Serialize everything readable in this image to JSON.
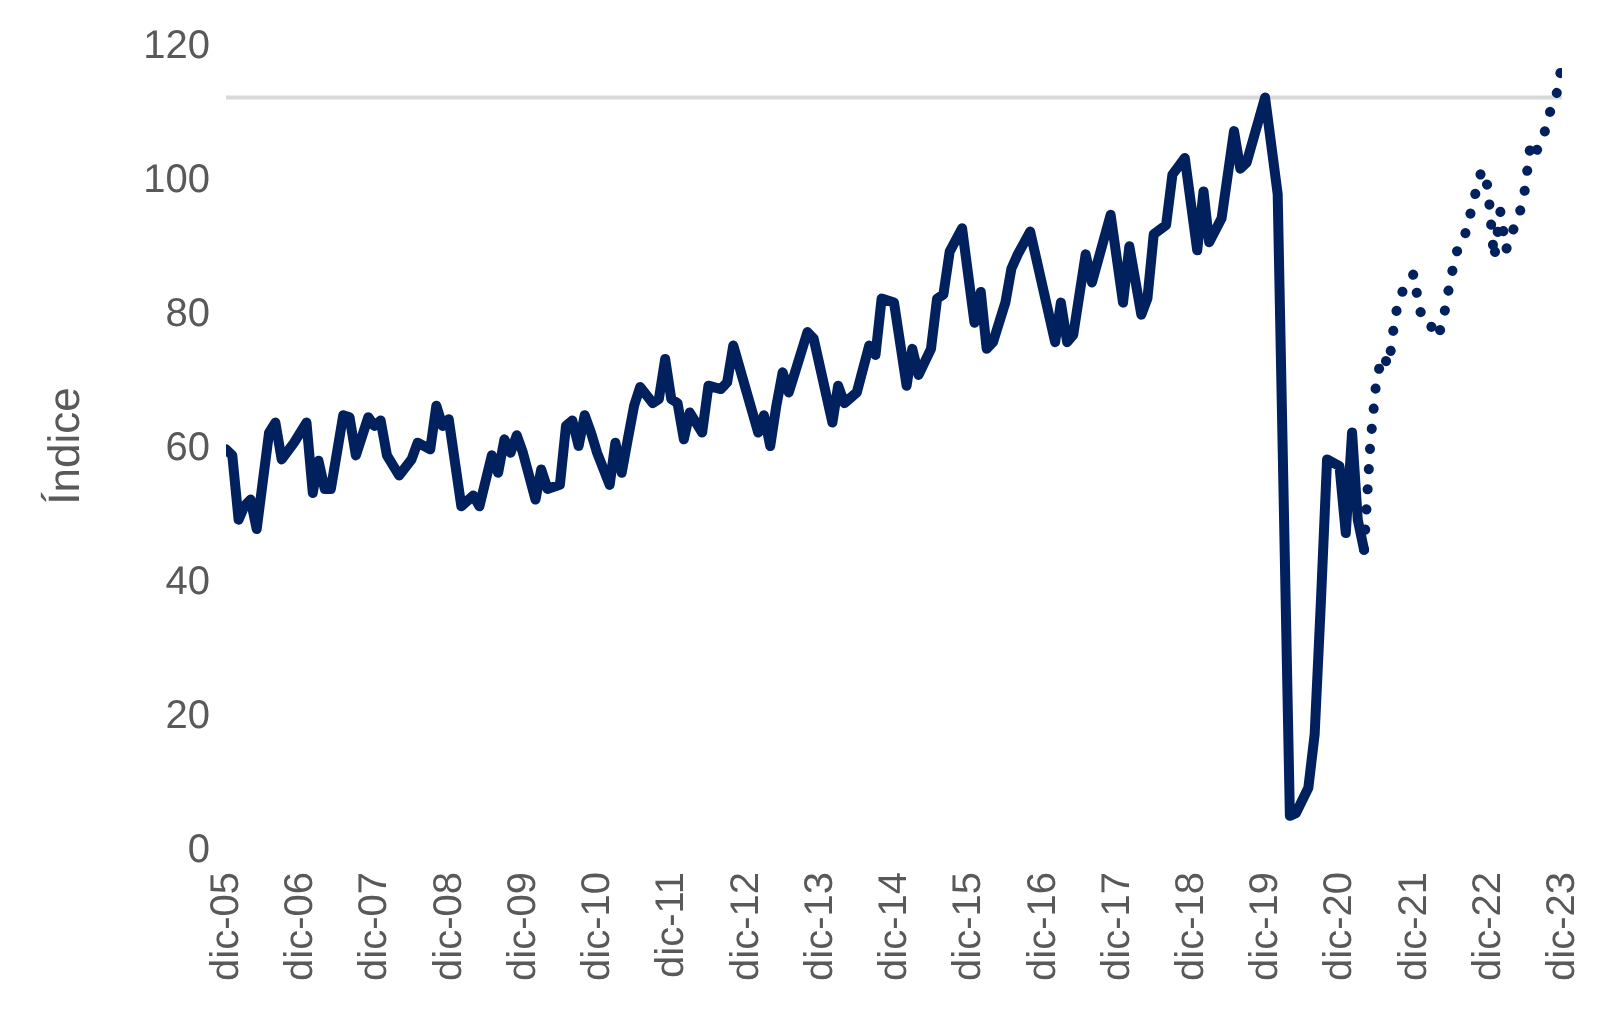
{
  "chart_data": {
    "type": "line",
    "ylabel": "Índice",
    "ylim": [
      0,
      120
    ],
    "yticks": [
      0,
      20,
      40,
      60,
      80,
      100,
      120
    ],
    "xlim": [
      "2005-12",
      "2023-12"
    ],
    "xticks": [
      {
        "value": "2005-12",
        "label": "dic-05"
      },
      {
        "value": "2006-12",
        "label": "dic-06"
      },
      {
        "value": "2007-12",
        "label": "dic-07"
      },
      {
        "value": "2008-12",
        "label": "dic-08"
      },
      {
        "value": "2009-12",
        "label": "dic-09"
      },
      {
        "value": "2010-12",
        "label": "dic-10"
      },
      {
        "value": "2011-12",
        "label": "dic-11"
      },
      {
        "value": "2012-12",
        "label": "dic-12"
      },
      {
        "value": "2013-12",
        "label": "dic-13"
      },
      {
        "value": "2014-12",
        "label": "dic-14"
      },
      {
        "value": "2015-12",
        "label": "dic-15"
      },
      {
        "value": "2016-12",
        "label": "dic-16"
      },
      {
        "value": "2017-12",
        "label": "dic-17"
      },
      {
        "value": "2018-12",
        "label": "dic-18"
      },
      {
        "value": "2019-12",
        "label": "dic-19"
      },
      {
        "value": "2020-12",
        "label": "dic-20"
      },
      {
        "value": "2021-12",
        "label": "dic-21"
      },
      {
        "value": "2022-12",
        "label": "dic-22"
      },
      {
        "value": "2023-12",
        "label": "dic-23"
      }
    ],
    "grid": false,
    "ref_lines": [
      {
        "axis": "y",
        "value": 112,
        "color": "#d9d9d9"
      }
    ],
    "series": [
      {
        "color": "#00215e",
        "line_style": "solid",
        "x": [
          "2005-12",
          "2006-01",
          "2006-02",
          "2006-03",
          "2006-04",
          "2006-05",
          "2006-07",
          "2006-08",
          "2006-09",
          "2006-11",
          "2007-01",
          "2007-02",
          "2007-03",
          "2007-04",
          "2007-05",
          "2007-07",
          "2007-08",
          "2007-09",
          "2007-11",
          "2007-12",
          "2008-01",
          "2008-02",
          "2008-04",
          "2008-06",
          "2008-07",
          "2008-09",
          "2008-10",
          "2008-11",
          "2008-12",
          "2009-02",
          "2009-04",
          "2009-05",
          "2009-07",
          "2009-08",
          "2009-09",
          "2009-10",
          "2009-11",
          "2009-12",
          "2010-02",
          "2010-03",
          "2010-04",
          "2010-06",
          "2010-07",
          "2010-08",
          "2010-09",
          "2010-10",
          "2010-11",
          "2010-12",
          "2011-02",
          "2011-03",
          "2011-04",
          "2011-05",
          "2011-06",
          "2011-07",
          "2011-09",
          "2011-10",
          "2011-11",
          "2011-12",
          "2012-01",
          "2012-02",
          "2012-03",
          "2012-05",
          "2012-06",
          "2012-08",
          "2012-09",
          "2012-10",
          "2013-02",
          "2013-03",
          "2013-04",
          "2013-05",
          "2013-06",
          "2013-07",
          "2013-08",
          "2013-10",
          "2013-11",
          "2014-02",
          "2014-03",
          "2014-04",
          "2014-06",
          "2014-08",
          "2014-09",
          "2014-10",
          "2014-12",
          "2015-02",
          "2015-03",
          "2015-04",
          "2015-06",
          "2015-07",
          "2015-08",
          "2015-09",
          "2015-11",
          "2016-01",
          "2016-02",
          "2016-03",
          "2016-04",
          "2016-06",
          "2016-07",
          "2016-08",
          "2016-10",
          "2017-02",
          "2017-03",
          "2017-04",
          "2017-05",
          "2017-07",
          "2017-08",
          "2017-11",
          "2018-01",
          "2018-02",
          "2018-04",
          "2018-05",
          "2018-06",
          "2018-08",
          "2018-09",
          "2018-11",
          "2019-01",
          "2019-02",
          "2019-03",
          "2019-05",
          "2019-07",
          "2019-08",
          "2019-09",
          "2019-12",
          "2020-02",
          "2020-04",
          "2020-05",
          "2020-07",
          "2020-08",
          "2020-09",
          "2020-10",
          "2020-12",
          "2021-01",
          "2021-02",
          "2021-03",
          "2021-04"
        ],
        "values": [
          59.5,
          58.6,
          49,
          51,
          52,
          47.6,
          62,
          63.5,
          58,
          60.5,
          63.5,
          53,
          57.8,
          53.6,
          53.6,
          64.6,
          64.3,
          58.6,
          64.3,
          63,
          63.8,
          58.6,
          55.6,
          58,
          60.5,
          59.5,
          66,
          63,
          64,
          51,
          52.6,
          51,
          58.6,
          56,
          61,
          59,
          61.6,
          59,
          52,
          56.5,
          53.6,
          54.2,
          63,
          63.8,
          60,
          64.6,
          62,
          59,
          54.2,
          60.5,
          56,
          61,
          66,
          68.8,
          66.4,
          67,
          73,
          67,
          66.4,
          61,
          65,
          62,
          69,
          68.5,
          69.5,
          75,
          62,
          64.6,
          60,
          66,
          71,
          68,
          71,
          77,
          76,
          63.5,
          69,
          66.4,
          68,
          75,
          73.6,
          82,
          81.4,
          69,
          74.5,
          70.6,
          74.5,
          82,
          82.6,
          89,
          92.5,
          78.4,
          83,
          74.5,
          75.5,
          81.4,
          86.5,
          88.6,
          92,
          75.5,
          81.4,
          75.5,
          76.6,
          88.6,
          84.4,
          94.5,
          81.4,
          89.8,
          79.6,
          82,
          91.6,
          93,
          100.5,
          103,
          89.2,
          98,
          90.4,
          94,
          107,
          101.4,
          102.3,
          112,
          97.6,
          4.8,
          5.2,
          9,
          17,
          37,
          58,
          57,
          47,
          62,
          49,
          44.5
        ]
      },
      {
        "color": "#00215e",
        "line_style": "dotted",
        "x": [
          "2021-04",
          "2021-05",
          "2021-06",
          "2021-07",
          "2021-08",
          "2021-09",
          "2021-10",
          "2021-11",
          "2021-12",
          "2022-01",
          "2022-02",
          "2022-03",
          "2022-04",
          "2022-05",
          "2022-06",
          "2022-07",
          "2022-08",
          "2022-09",
          "2022-10",
          "2022-11",
          "2022-12",
          "2023-01",
          "2023-02",
          "2023-03",
          "2023-04",
          "2023-05",
          "2023-06",
          "2023-07",
          "2023-08",
          "2023-09",
          "2023-10",
          "2023-11",
          "2023-12"
        ],
        "values": [
          44.5,
          60,
          70,
          73.5,
          72,
          79.4,
          82.8,
          84,
          85.7,
          80,
          79.8,
          77.6,
          76.2,
          79.8,
          85,
          89,
          90.4,
          94,
          97.7,
          101.2,
          98.7,
          88,
          95,
          89.3,
          92,
          94,
          98.2,
          105.5,
          104.2,
          106.2,
          109.7,
          112,
          117
        ]
      }
    ]
  }
}
